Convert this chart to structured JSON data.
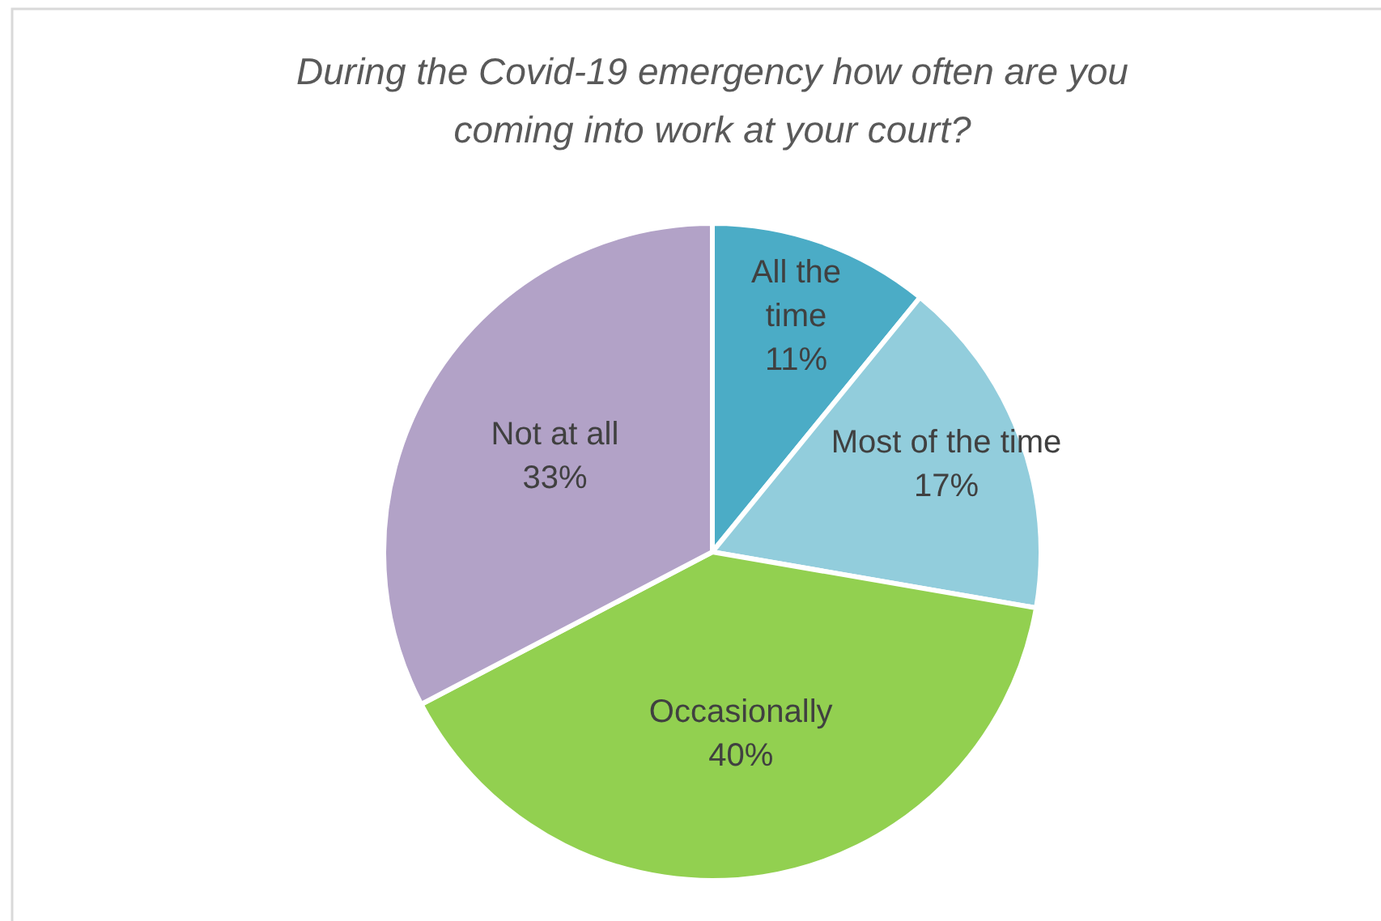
{
  "chart_data": {
    "type": "pie",
    "title": "During the Covid-19 emergency how often are you coming into work at your court?",
    "categories": [
      "All the time",
      "Most of the time",
      "Occasionally",
      "Not at all"
    ],
    "values": [
      11,
      17,
      40,
      33
    ],
    "colors": [
      "#4bacc6",
      "#92cddc",
      "#92d050",
      "#b2a2c7"
    ],
    "value_labels": [
      "11%",
      "17%",
      "40%",
      "33%"
    ]
  }
}
